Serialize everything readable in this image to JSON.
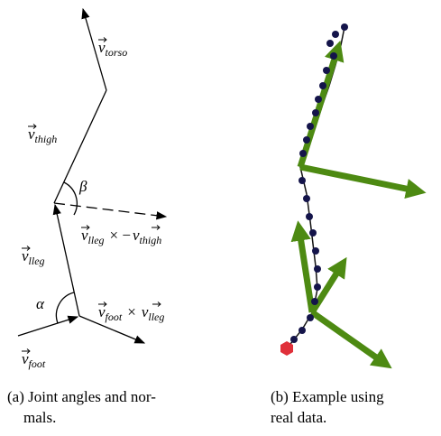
{
  "panel_a": {
    "labels": {
      "torso": {
        "symbol": "v",
        "sub": "torso"
      },
      "thigh": {
        "symbol": "v",
        "sub": "thigh"
      },
      "beta": "β",
      "knee_normal": {
        "left_symbol": "v",
        "left_sub": "lleg",
        "operator": "× −",
        "right_symbol": "v",
        "right_sub": "thigh"
      },
      "lleg": {
        "symbol": "v",
        "sub": "lleg"
      },
      "alpha": "α",
      "foot_normal": {
        "left_symbol": "v",
        "left_sub": "foot",
        "operator": "×",
        "right_symbol": "v",
        "right_sub": "lleg"
      },
      "foot": {
        "symbol": "v",
        "sub": "foot"
      }
    },
    "caption": [
      "(a) Joint angles and nor-",
      "mals."
    ]
  },
  "panel_b": {
    "caption": [
      "(b) Example using",
      "real data."
    ]
  }
}
